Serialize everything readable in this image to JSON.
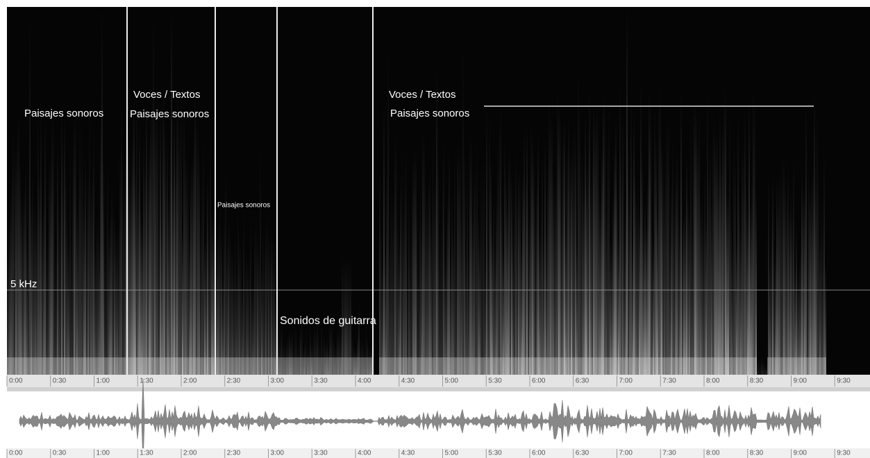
{
  "spectrogram": {
    "frequency_label": "5 kHz",
    "annotations": [
      {
        "text": "Paisajes sonoros"
      },
      {
        "text": "Voces / Textos"
      },
      {
        "text": "Paisajes sonoros"
      },
      {
        "text": "Paisajes sonoros"
      },
      {
        "text": "Sonidos de guitarra"
      },
      {
        "text": "Voces / Textos"
      },
      {
        "text": "Paisajes sonoros"
      }
    ],
    "time_ticks": [
      "0:00",
      "0:30",
      "1:00",
      "1:30",
      "2:00",
      "2:30",
      "3:00",
      "3:30",
      "4:00",
      "4:30",
      "5:00",
      "5:30",
      "6:00",
      "6:30",
      "7:00",
      "7:30",
      "8:00",
      "8:30",
      "9:00",
      "9:30"
    ]
  }
}
